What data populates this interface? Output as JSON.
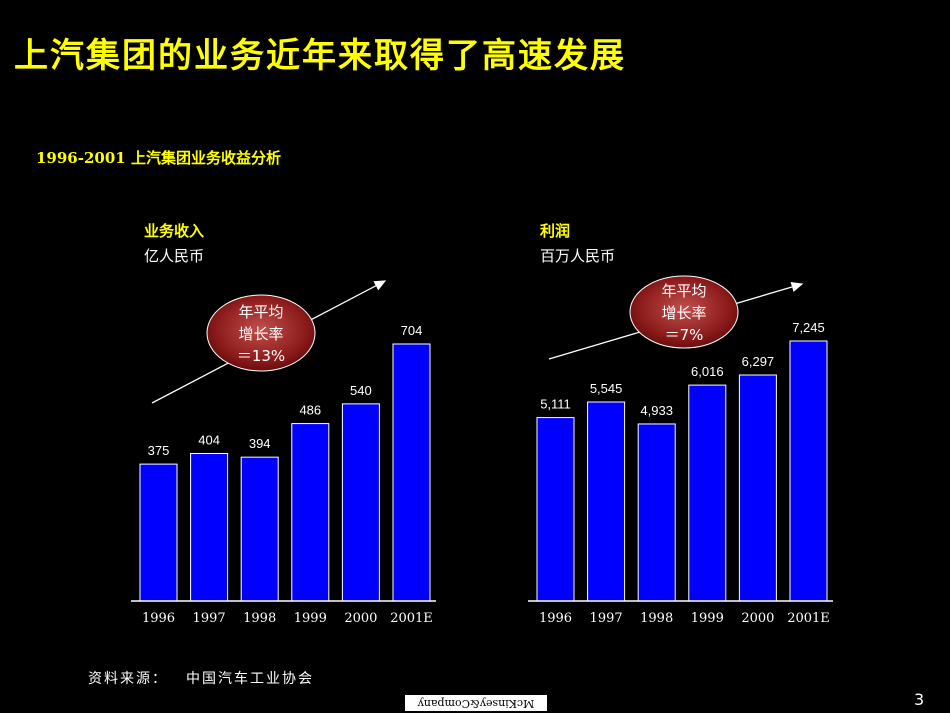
{
  "title": "上汽集团的业务近年来取得了高速发展",
  "subtitle": "1996-2001 上汽集团业务收益分析",
  "chart_data": [
    {
      "type": "bar",
      "label": "业务收入",
      "unit": "亿人民币",
      "categories": [
        "1996",
        "1997",
        "1998",
        "1999",
        "2000",
        "2001E"
      ],
      "values": [
        375,
        404,
        394,
        486,
        540,
        704
      ],
      "value_labels": [
        "375",
        "404",
        "394",
        "486",
        "540",
        "704"
      ],
      "ylim": [
        0,
        780
      ],
      "growth_badge": {
        "line1": "年平均",
        "line2": "增长率",
        "line3": "＝13%"
      }
    },
    {
      "type": "bar",
      "label": "利润",
      "unit": "百万人民币",
      "categories": [
        "1996",
        "1997",
        "1998",
        "1999",
        "2000",
        "2001E"
      ],
      "values": [
        5111,
        5545,
        4933,
        6016,
        6297,
        7245
      ],
      "value_labels": [
        "5,111",
        "5,545",
        "4,933",
        "6,016",
        "6,297",
        "7,245"
      ],
      "ylim": [
        0,
        8400
      ],
      "growth_badge": {
        "line1": "年平均",
        "line2": "增长率",
        "line3": "＝7%"
      }
    }
  ],
  "colors": {
    "bar": "#0000ff",
    "bar_stroke": "#ffffff",
    "title": "#ffff00",
    "badge_fill": "#8b1a1a"
  },
  "source": {
    "label": "资料来源：",
    "text": "中国汽车工业协会"
  },
  "logo_text": "McKinsey&Company",
  "page_number": "3"
}
